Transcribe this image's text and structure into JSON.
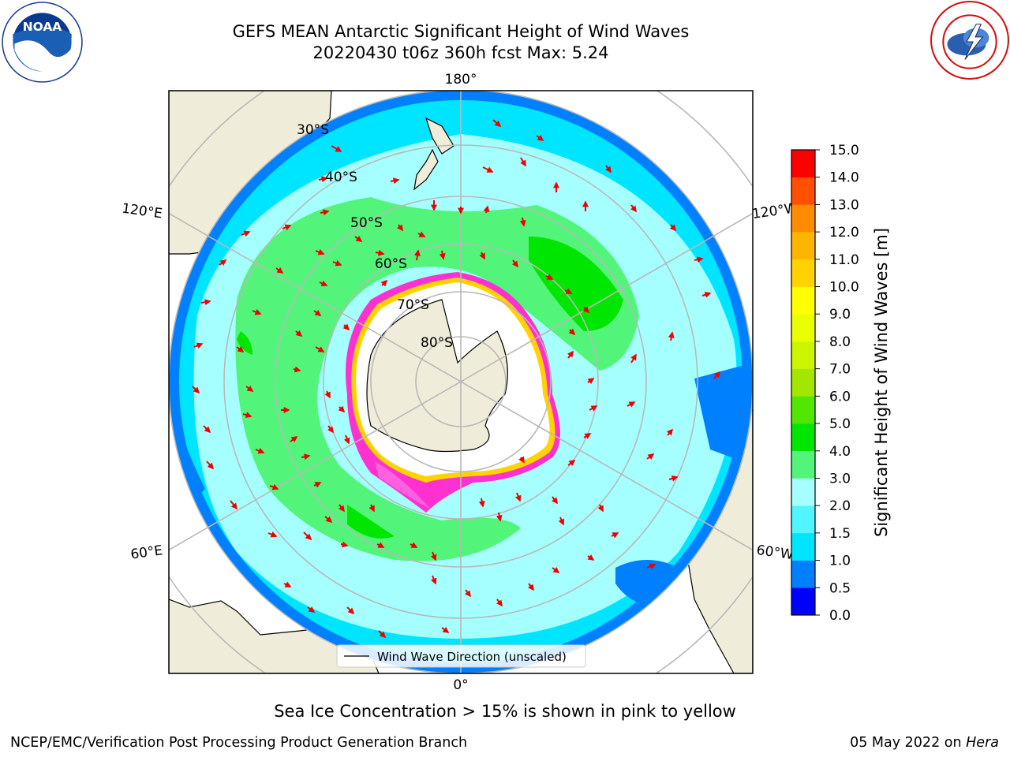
{
  "title": {
    "line1": "GEFS MEAN Antarctic Significant Height of Wind Waves",
    "line2": "20220430 t06z 360h fcst   Max: 5.24"
  },
  "map": {
    "projection": "south-polar-stereographic",
    "longitude_labels": {
      "top": "180°",
      "bottom": "0°",
      "upper_left": "120°E",
      "upper_right": "120°W",
      "lower_left": "60°E",
      "lower_right": "60°W"
    },
    "latitude_labels": [
      "30°S",
      "40°S",
      "50°S",
      "60°S",
      "70°S",
      "80°S"
    ],
    "legend_label": "Wind Wave Direction (unscaled)",
    "colors": {
      "land": "#efedd9",
      "ice_shelf": "#ffffff",
      "ice_edge": "#ff30d0",
      "arrow": "#ee0000",
      "graticule": "#b8b8b8"
    }
  },
  "colorbar": {
    "label": "Significant Height of Wind Waves [m]",
    "ticks": [
      "0.0",
      "0.5",
      "1.0",
      "1.5",
      "2.0",
      "3.0",
      "4.0",
      "5.0",
      "6.0",
      "7.0",
      "8.0",
      "9.0",
      "10.0",
      "11.0",
      "12.0",
      "13.0",
      "14.0",
      "15.0"
    ],
    "colors": [
      "#0000ff",
      "#0080ff",
      "#00e5ff",
      "#50f5ff",
      "#a6ffff",
      "#52f57a",
      "#00e600",
      "#52e600",
      "#a3e600",
      "#ccf500",
      "#eaff00",
      "#ffff00",
      "#ffd200",
      "#ffb400",
      "#ff8c00",
      "#ff5000",
      "#ff0000"
    ]
  },
  "chart_data": {
    "type": "heatmap",
    "variable": "Significant Height of Wind Waves",
    "units": "m",
    "max_value": 5.24,
    "value_range": [
      0.0,
      15.0
    ]
  },
  "note": "Sea Ice Concentration > 15% is shown in pink to yellow",
  "footer": {
    "left": "NCEP/EMC/Verification Post Processing Product Generation Branch",
    "right_date": "05 May 2022 on ",
    "right_host": "Hera"
  }
}
